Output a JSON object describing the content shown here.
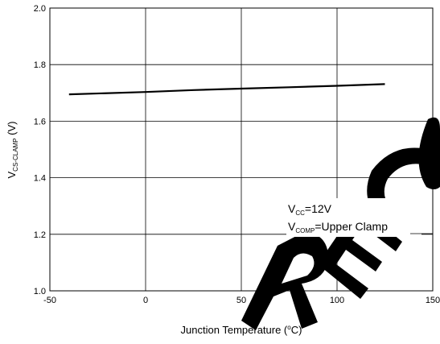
{
  "chart_data": {
    "type": "line",
    "xlabel": "Junction Temperature (°C)",
    "xlabel_parts": {
      "before": "Junction Temperature (",
      "sup": "o",
      "after": "C)"
    },
    "ylabel_parts": {
      "main": "V",
      "sub": "CS-CLAMP",
      "rest": " (V)"
    },
    "xlim": [
      -50,
      150
    ],
    "ylim": [
      1.0,
      2.0
    ],
    "x_ticks": [
      "-50",
      "0",
      "50",
      "100",
      "150"
    ],
    "y_ticks": [
      "1.0",
      "1.2",
      "1.4",
      "1.6",
      "1.8",
      "2.0"
    ],
    "grid": true,
    "series": [
      {
        "x": [
          -40,
          0,
          25,
          50,
          75,
          100,
          125
        ],
        "y": [
          1.695,
          1.703,
          1.71,
          1.715,
          1.72,
          1.725,
          1.731
        ]
      }
    ],
    "annotations": [
      {
        "main": "V",
        "sub": "CC",
        "rest": "=12V"
      },
      {
        "main": "V",
        "sub": "COMP",
        "rest": "=Upper Clamp"
      }
    ],
    "watermark": "RECO"
  }
}
